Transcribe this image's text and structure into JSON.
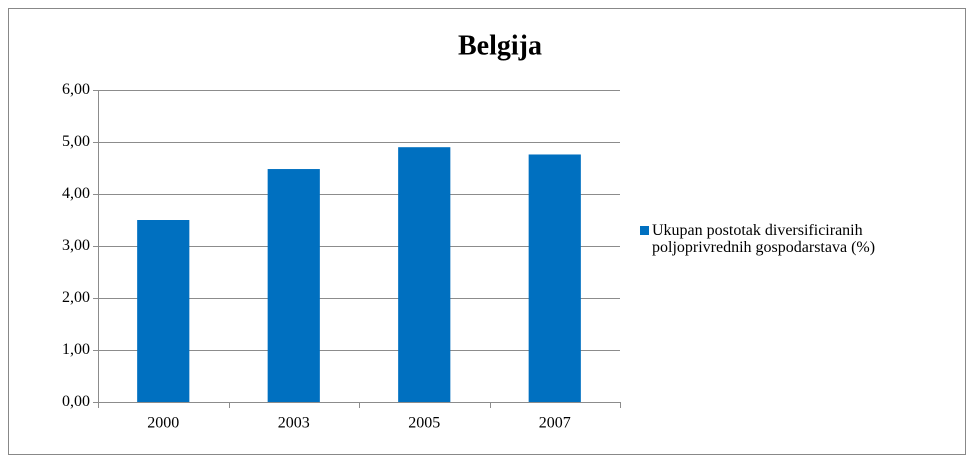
{
  "chart_data": {
    "type": "bar",
    "title": "Belgija",
    "categories": [
      "2000",
      "2003",
      "2005",
      "2007"
    ],
    "series": [
      {
        "name": "Ukupan postotak diversificiranih poljoprivrednih gospodarstava (%)",
        "color": "#0070c0",
        "values": [
          3.5,
          4.48,
          4.9,
          4.76
        ]
      }
    ],
    "ylim": [
      0,
      6
    ],
    "yticks": [
      {
        "value": 0,
        "label": "0,00"
      },
      {
        "value": 1,
        "label": "1,00"
      },
      {
        "value": 2,
        "label": "2,00"
      },
      {
        "value": 3,
        "label": "3,00"
      },
      {
        "value": 4,
        "label": "4,00"
      },
      {
        "value": 5,
        "label": "5,00"
      },
      {
        "value": 6,
        "label": "6,00"
      }
    ],
    "grid": true,
    "legend": "right"
  }
}
